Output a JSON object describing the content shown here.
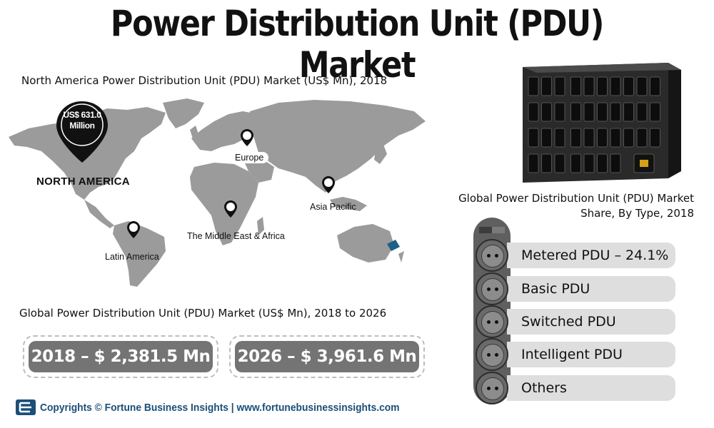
{
  "title": "Power Distribution Unit (PDU) Market",
  "map": {
    "title": "North America Power Distribution Unit (PDU) Market (US$ Mn), 2018",
    "highlight_value": "US$ 631.0",
    "highlight_unit": "Million",
    "highlight_region": "NORTH AMERICA",
    "regions": [
      "Europe",
      "Asia Pacific",
      "The Middle East & Africa",
      "Latin America"
    ]
  },
  "growth": {
    "title": "Global Power Distribution Unit (PDU) Market (US$ Mn), 2018 to 2026",
    "value_2018": "2018 –  $ 2,381.5 Mn",
    "value_2026": "2026 – $ 3,961.6 Mn"
  },
  "types": {
    "title_line1": "Global Power Distribution Unit (PDU) Market",
    "title_line2": "Share, By Type, 2018",
    "items": [
      "Metered PDU – 24.1%",
      "Basic PDU",
      "Switched PDU",
      "Intelligent PDU",
      "Others"
    ]
  },
  "footer": {
    "text": "Copyrights © Fortune Business Insights | www.fortunebusinessinsights.com",
    "logo_icon": "fortune-business-insights-logo-icon",
    "color": "#1a4f7a"
  },
  "colors": {
    "map": "#9b9b9b",
    "box": "#747474",
    "bar": "#dedede",
    "pin": "#111111"
  }
}
